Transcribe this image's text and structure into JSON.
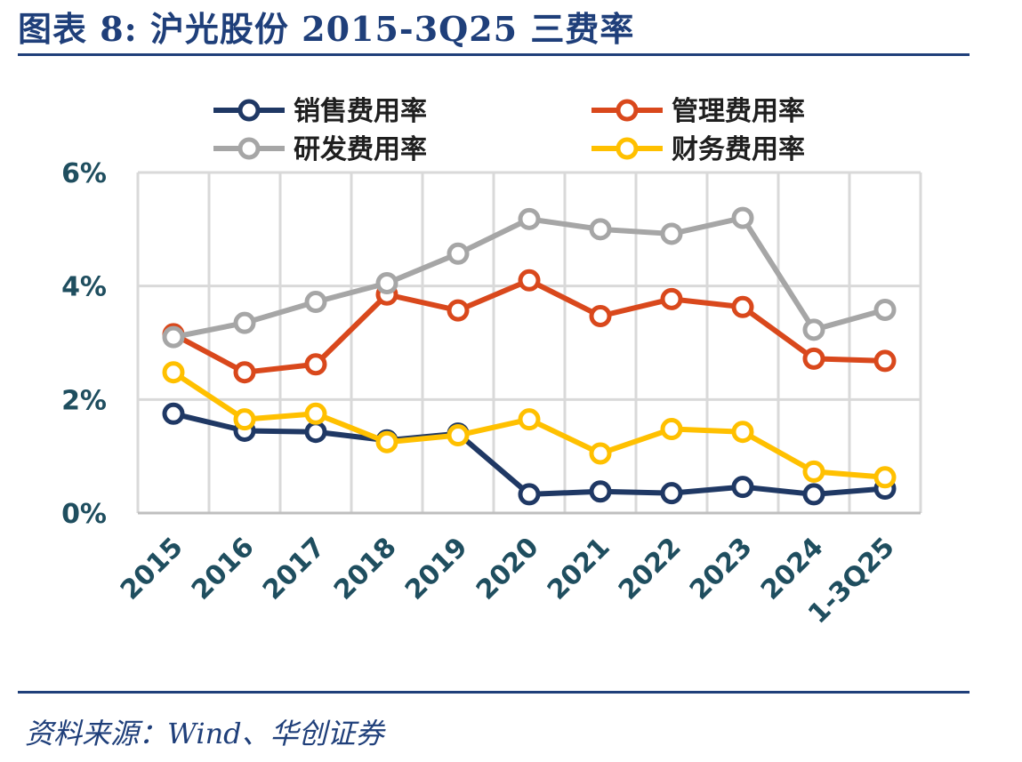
{
  "figure": {
    "title": "图表 8:  沪光股份 2015-3Q25 三费率",
    "source": "资料来源：Wind、华创证券"
  },
  "colors": {
    "title": "#1f3f7a",
    "axis_text": "#1f4e5f",
    "grid": "#d9d9d9"
  },
  "chart_data": {
    "type": "line",
    "categories": [
      "2015",
      "2016",
      "2017",
      "2018",
      "2019",
      "2020",
      "2021",
      "2022",
      "2023",
      "2024",
      "1-3Q25"
    ],
    "y_ticks": [
      "0%",
      "2%",
      "4%",
      "6%"
    ],
    "ylim": [
      0,
      6
    ],
    "grid": true,
    "legend_position": "top",
    "series": [
      {
        "name": "销售费用率",
        "color": "#1f3864",
        "values": [
          1.75,
          1.45,
          1.43,
          1.28,
          1.4,
          0.33,
          0.38,
          0.35,
          0.46,
          0.33,
          0.43
        ]
      },
      {
        "name": "管理费用率",
        "color": "#d9481c",
        "values": [
          3.15,
          2.48,
          2.62,
          3.85,
          3.57,
          4.1,
          3.47,
          3.77,
          3.63,
          2.72,
          2.68
        ]
      },
      {
        "name": "研发费用率",
        "color": "#a6a6a6",
        "values": [
          3.1,
          3.35,
          3.72,
          4.05,
          4.57,
          5.18,
          5.0,
          4.92,
          5.2,
          3.23,
          3.58
        ]
      },
      {
        "name": "财务费用率",
        "color": "#ffc000",
        "values": [
          2.48,
          1.65,
          1.75,
          1.25,
          1.37,
          1.65,
          1.05,
          1.48,
          1.43,
          0.73,
          0.63
        ]
      }
    ]
  }
}
